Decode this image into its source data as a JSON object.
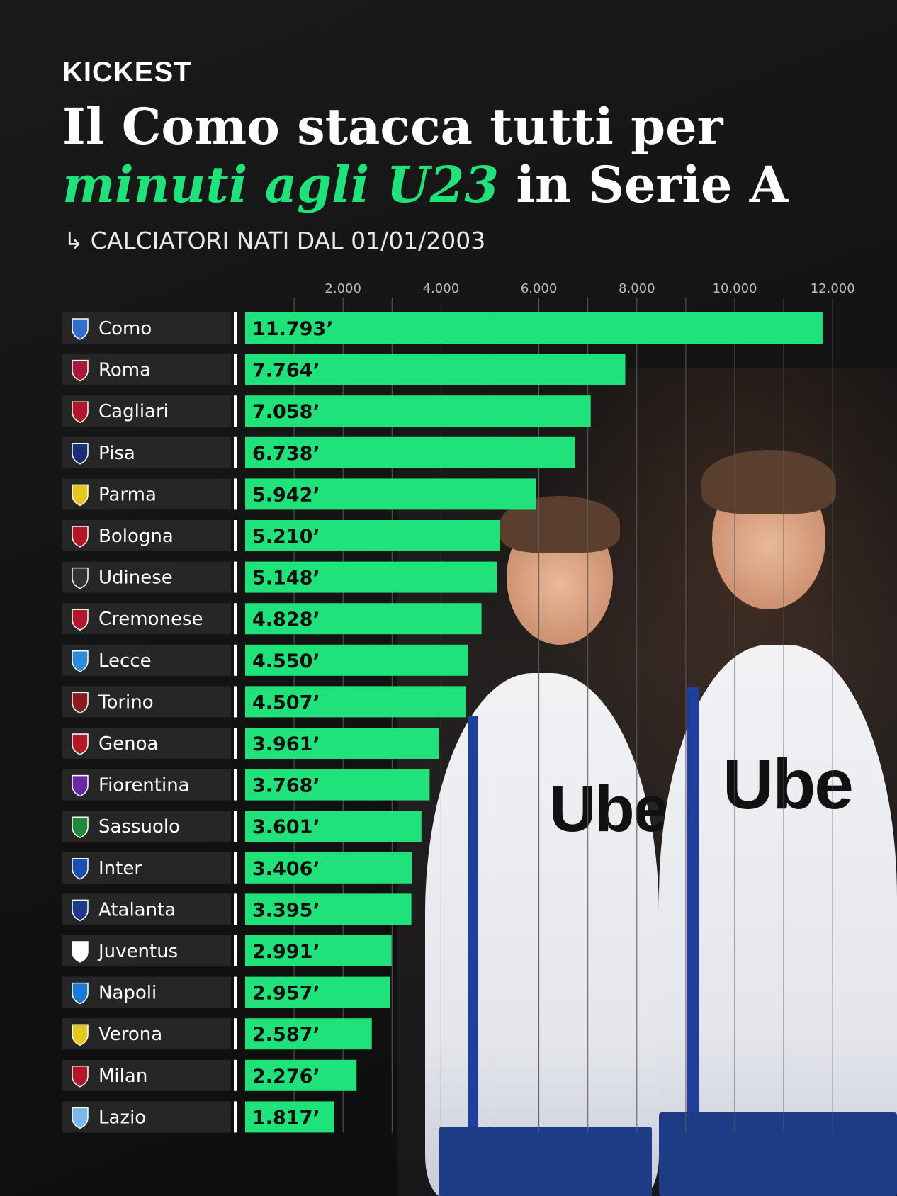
{
  "brand": "KICKEST",
  "title": {
    "line1": "Il Como stacca tutti per",
    "line2_highlight": "minuti agli U23",
    "line2_rest": " in Serie A"
  },
  "subtitle": "CALCIATORI NATI DAL 01/01/2003",
  "subtitle_icon": "arrow-down-right-icon",
  "colors": {
    "accent": "#1fe27a",
    "background": "#141414",
    "label_bg": "#262626"
  },
  "chart_data": {
    "type": "bar",
    "orientation": "horizontal",
    "title": "",
    "xlabel": "",
    "ylabel": "",
    "xlim": [
      0,
      12000
    ],
    "ticks": [
      2000,
      4000,
      6000,
      8000,
      10000,
      12000
    ],
    "tick_labels": [
      "2.000",
      "4.000",
      "6.000",
      "8.000",
      "10.000",
      "12.000"
    ],
    "grid": true,
    "categories": [
      "Como",
      "Roma",
      "Cagliari",
      "Pisa",
      "Parma",
      "Bologna",
      "Udinese",
      "Cremonese",
      "Lecce",
      "Torino",
      "Genoa",
      "Fiorentina",
      "Sassuolo",
      "Inter",
      "Atalanta",
      "Juventus",
      "Napoli",
      "Verona",
      "Milan",
      "Lazio"
    ],
    "values": [
      11793,
      7764,
      7058,
      6738,
      5942,
      5210,
      5148,
      4828,
      4550,
      4507,
      3961,
      3768,
      3601,
      3406,
      3395,
      2991,
      2957,
      2587,
      2276,
      1817
    ],
    "value_labels": [
      "11.793’",
      "7.764’",
      "7.058’",
      "6.738’",
      "5.942’",
      "5.210’",
      "5.148’",
      "4.828’",
      "4.550’",
      "4.507’",
      "3.961’",
      "3.768’",
      "3.601’",
      "3.406’",
      "3.395’",
      "2.991’",
      "2.957’",
      "2.587’",
      "2.276’",
      "1.817’"
    ],
    "badge_colors": [
      "#2f6fd0",
      "#a8183a",
      "#b3172a",
      "#1a2f7a",
      "#e3c91f",
      "#b3172a",
      "#333333",
      "#b3172a",
      "#2f8ad8",
      "#8a1c1c",
      "#b3172a",
      "#6a2aa8",
      "#1f8a3a",
      "#1a4fb5",
      "#1a3a8a",
      "#ffffff",
      "#1a7ad8",
      "#e3c91f",
      "#b3172a",
      "#7ab8e8"
    ],
    "badge_icons": [
      "como-crest-icon",
      "roma-crest-icon",
      "cagliari-crest-icon",
      "pisa-crest-icon",
      "parma-crest-icon",
      "bologna-crest-icon",
      "udinese-crest-icon",
      "cremonese-crest-icon",
      "lecce-crest-icon",
      "torino-crest-icon",
      "genoa-crest-icon",
      "fiorentina-crest-icon",
      "sassuolo-crest-icon",
      "inter-crest-icon",
      "atalanta-crest-icon",
      "juventus-crest-icon",
      "napoli-crest-icon",
      "verona-crest-icon",
      "milan-crest-icon",
      "lazio-crest-icon"
    ]
  }
}
